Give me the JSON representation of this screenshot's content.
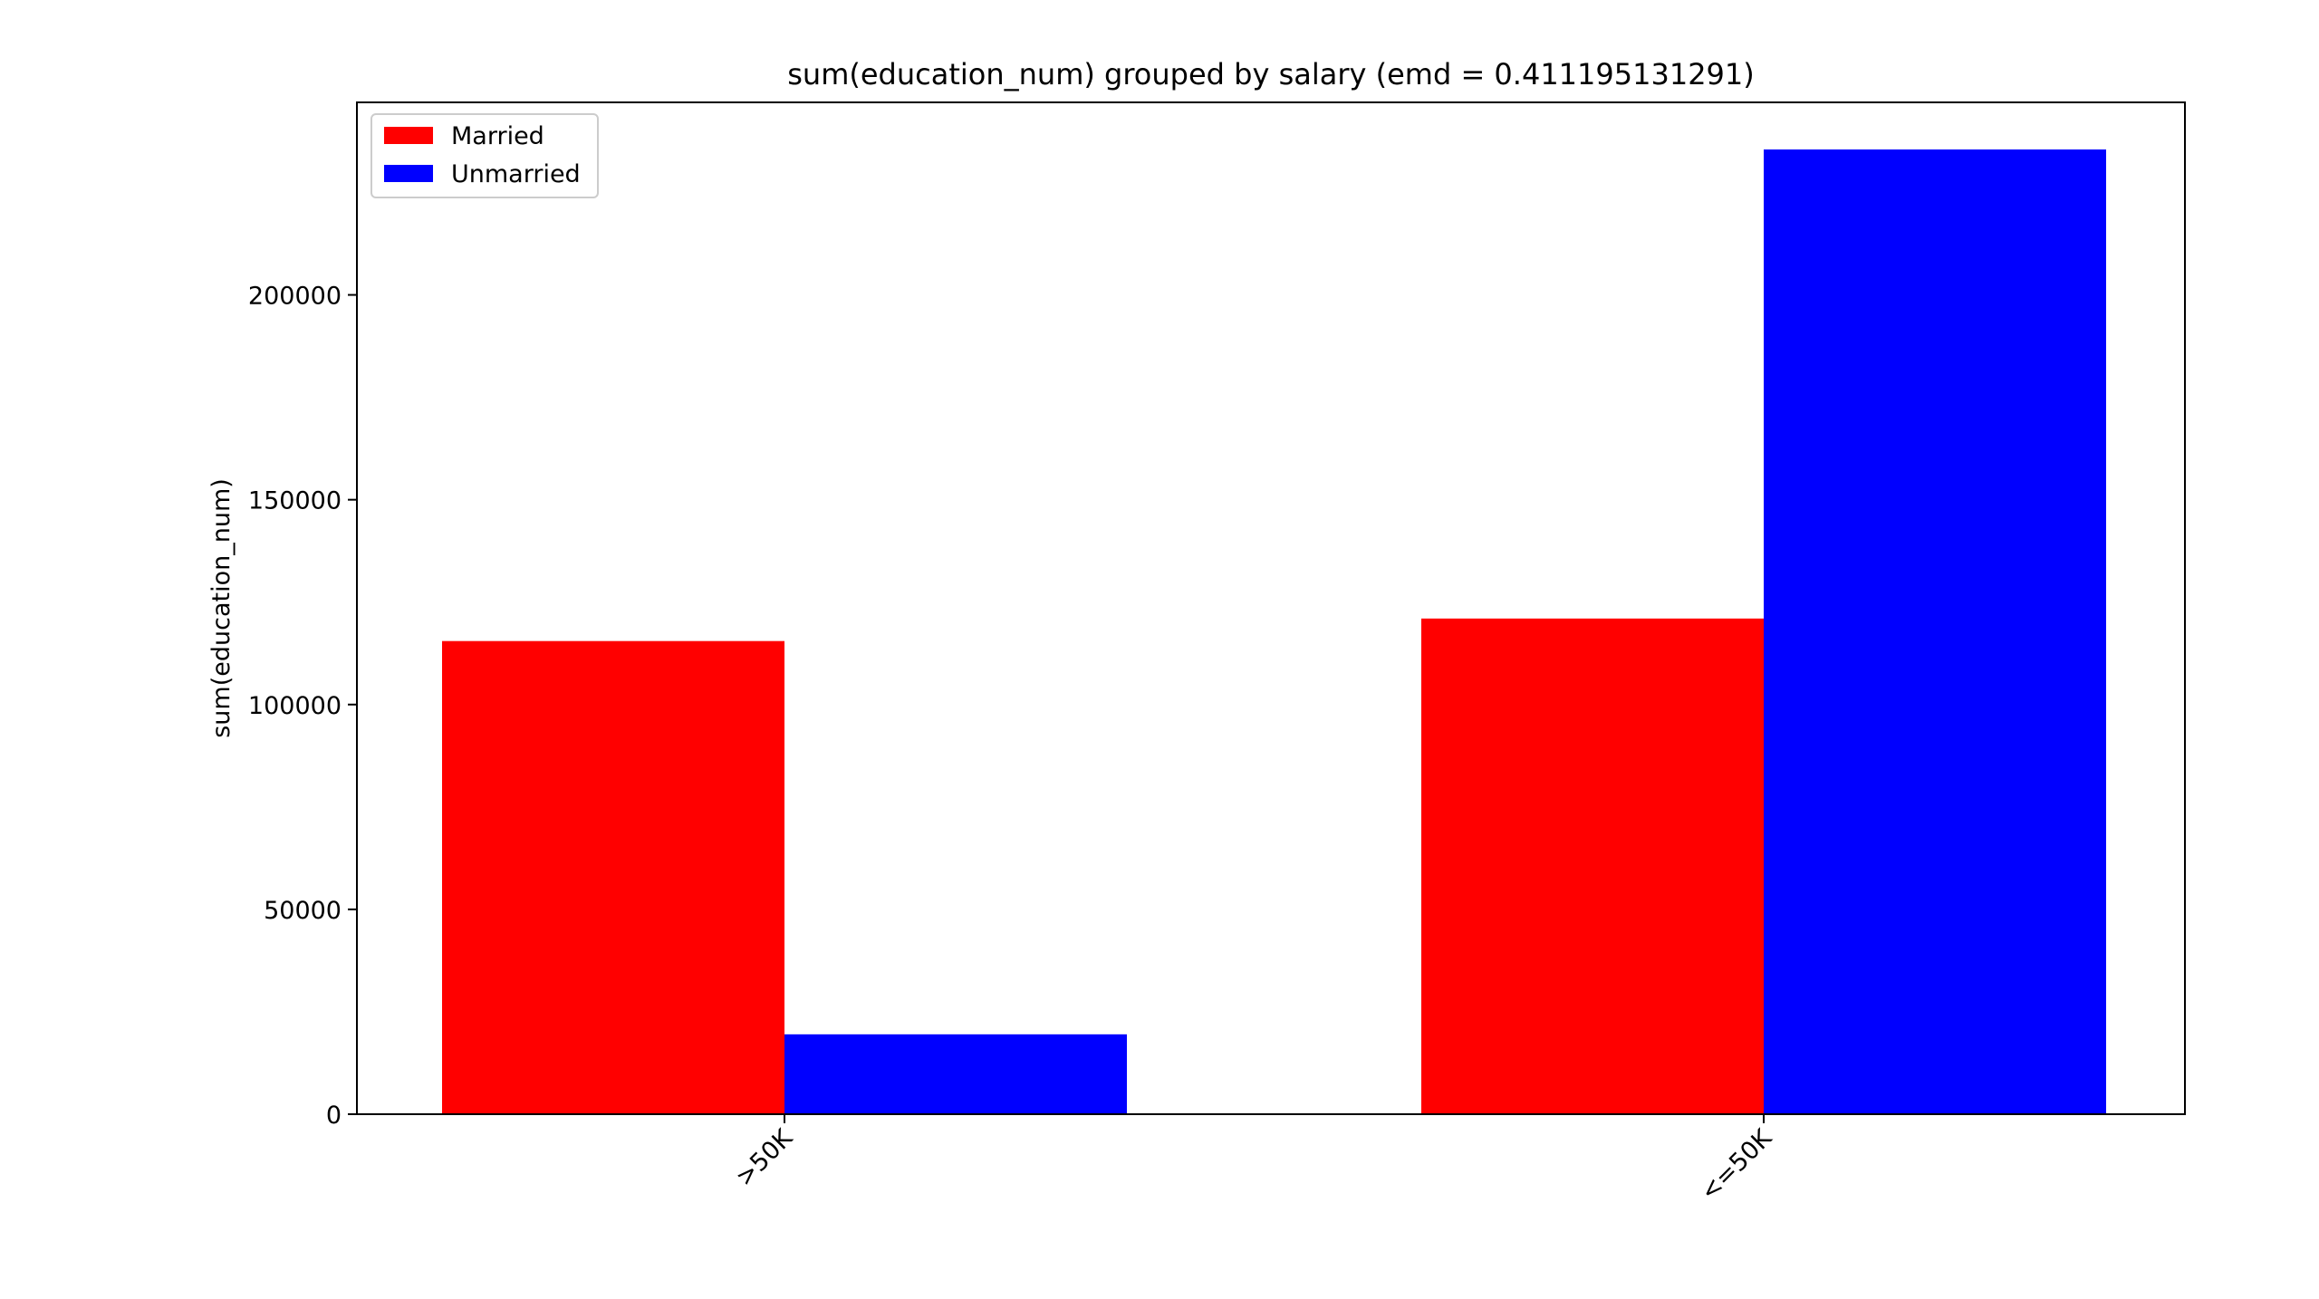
{
  "chart_data": {
    "type": "bar",
    "title": "sum(education_num) grouped by salary (emd = 0.411195131291)",
    "xlabel": "",
    "ylabel": "sum(education_num)",
    "categories": [
      ">50K",
      "<=50K"
    ],
    "series": [
      {
        "name": "Married",
        "color": "#ff0000",
        "values": [
          115500,
          121000
        ]
      },
      {
        "name": "Unmarried",
        "color": "#0000ff",
        "values": [
          19500,
          235500
        ]
      }
    ],
    "ylim": [
      0,
      247000
    ],
    "yticks": [
      0,
      50000,
      100000,
      150000,
      200000
    ],
    "ytick_labels": [
      "0",
      "50000",
      "100000",
      "150000",
      "200000"
    ],
    "grid": false,
    "legend": {
      "placement": "top-left",
      "entries": [
        "Married",
        "Unmarried"
      ]
    }
  }
}
